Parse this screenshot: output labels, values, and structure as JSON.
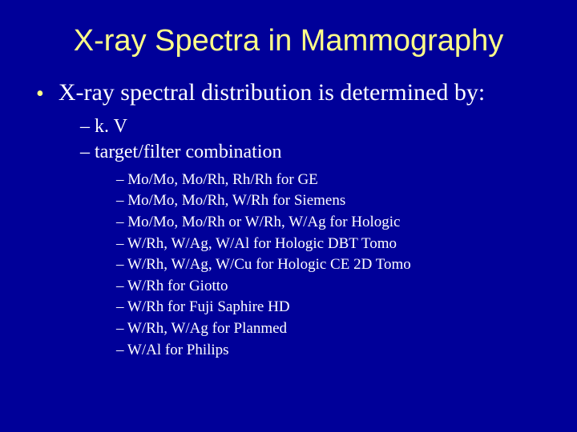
{
  "colors": {
    "background": "#000099",
    "title": "#ffff88",
    "text": "#ffffff",
    "bullet": "#ffff88"
  },
  "typography": {
    "title_fontsize": 38,
    "title_family": "Arial",
    "bullet_fontsize": 30,
    "sub_fontsize": 24,
    "subsub_fontsize": 19,
    "body_family": "Times New Roman"
  },
  "title": "X-ray Spectra in Mammography",
  "bullet": {
    "text": "X-ray spectral distribution is determined by:",
    "subs": [
      {
        "text": "– k. V"
      },
      {
        "text": "– target/filter combination",
        "subsubs": [
          "– Mo/Mo, Mo/Rh, Rh/Rh for GE",
          "– Mo/Mo, Mo/Rh, W/Rh for Siemens",
          "– Mo/Mo, Mo/Rh or W/Rh, W/Ag for Hologic",
          "– W/Rh, W/Ag, W/Al for Hologic DBT Tomo",
          "– W/Rh, W/Ag, W/Cu for Hologic CE 2D Tomo",
          "– W/Rh for Giotto",
          "– W/Rh for Fuji Saphire HD",
          "– W/Rh, W/Ag for Planmed",
          "– W/Al for Philips"
        ]
      }
    ]
  }
}
